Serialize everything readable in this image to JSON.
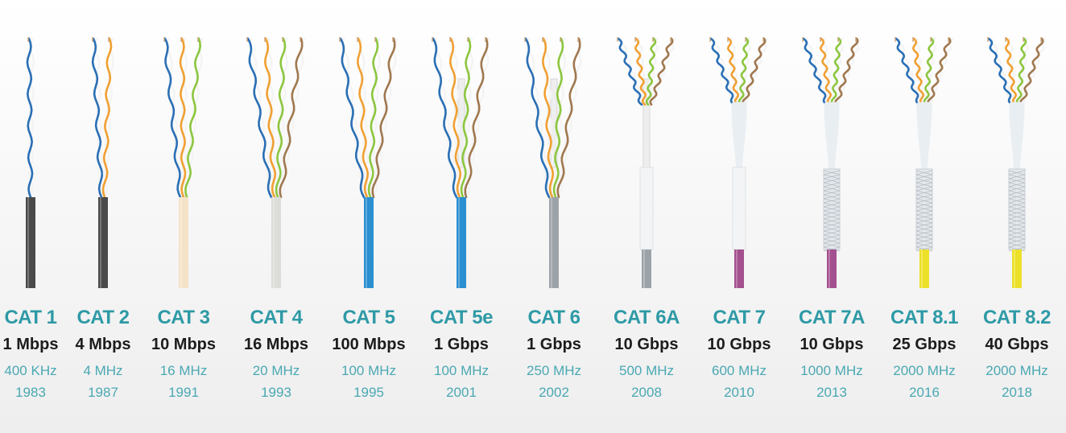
{
  "colors": {
    "blue": "#2a6fb5",
    "orange": "#f0a033",
    "green": "#8cc63f",
    "brown": "#a0784f",
    "label_teal": "#2e9aa6",
    "spec_teal": "#4aa8b3",
    "speed_dark": "#1c1c1c"
  },
  "cables": [
    {
      "name": "CAT 1",
      "speed": "1 Mbps",
      "frequency": "400 KHz",
      "year": "1983",
      "jacket_color": "#4a4a4a",
      "pairs": 1,
      "spline": false,
      "shield": "none"
    },
    {
      "name": "CAT 2",
      "speed": "4 Mbps",
      "frequency": "4 MHz",
      "year": "1987",
      "jacket_color": "#4a4a4a",
      "pairs": 2,
      "spline": false,
      "shield": "none"
    },
    {
      "name": "CAT 3",
      "speed": "10 Mbps",
      "frequency": "16 MHz",
      "year": "1991",
      "jacket_color": "#f5e3c8",
      "pairs": 3,
      "spline": false,
      "shield": "none"
    },
    {
      "name": "CAT 4",
      "speed": "16 Mbps",
      "frequency": "20 MHz",
      "year": "1993",
      "jacket_color": "#dcdcd8",
      "pairs": 4,
      "spline": false,
      "shield": "none"
    },
    {
      "name": "CAT 5",
      "speed": "100 Mbps",
      "frequency": "100 MHz",
      "year": "1995",
      "jacket_color": "#2b8fd0",
      "pairs": 4,
      "spline": false,
      "shield": "none"
    },
    {
      "name": "CAT 5e",
      "speed": "1 Gbps",
      "frequency": "100 MHz",
      "year": "2001",
      "jacket_color": "#2b8fd0",
      "pairs": 4,
      "spline": true,
      "shield": "none"
    },
    {
      "name": "CAT 6",
      "speed": "1 Gbps",
      "frequency": "250 MHz",
      "year": "2002",
      "jacket_color": "#9ca3a8",
      "pairs": 4,
      "spline": true,
      "shield": "none"
    },
    {
      "name": "CAT 6A",
      "speed": "10 Gbps",
      "frequency": "500 MHz",
      "year": "2008",
      "jacket_color": "#9ca3a8",
      "pairs": 4,
      "spline": true,
      "shield": "foil"
    },
    {
      "name": "CAT 7",
      "speed": "10 Gbps",
      "frequency": "600 MHz",
      "year": "2010",
      "jacket_color": "#a4508e",
      "pairs": 4,
      "spline": false,
      "shield": "foil-pairs"
    },
    {
      "name": "CAT 7A",
      "speed": "10 Gbps",
      "frequency": "1000 MHz",
      "year": "2013",
      "jacket_color": "#a4508e",
      "pairs": 4,
      "spline": false,
      "shield": "braid"
    },
    {
      "name": "CAT 8.1",
      "speed": "25 Gbps",
      "frequency": "2000 MHz",
      "year": "2016",
      "jacket_color": "#ece028",
      "pairs": 4,
      "spline": false,
      "shield": "braid"
    },
    {
      "name": "CAT 8.2",
      "speed": "40 Gbps",
      "frequency": "2000 MHz",
      "year": "2018",
      "jacket_color": "#ece028",
      "pairs": 4,
      "spline": false,
      "shield": "braid"
    }
  ]
}
